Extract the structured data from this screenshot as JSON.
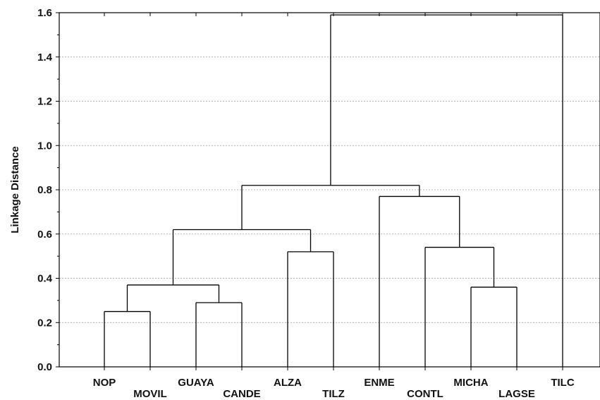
{
  "chart_data": {
    "type": "dendrogram",
    "ylabel": "Linkage Distance",
    "ylim": [
      0.0,
      1.6
    ],
    "yticks": [
      "0.0",
      "0.2",
      "0.4",
      "0.6",
      "0.8",
      "1.0",
      "1.2",
      "1.4",
      "1.6"
    ],
    "grid": true,
    "leaves": [
      "NOP",
      "MOVIL",
      "GUAYA",
      "CANDE",
      "ALZA",
      "TILZ",
      "ENME",
      "CONTL",
      "MICHA",
      "LAGSE",
      "TILC"
    ],
    "merges": [
      {
        "left": "NOP",
        "right": "MOVIL",
        "height": 0.25
      },
      {
        "left": "GUAYA",
        "right": "CANDE",
        "height": 0.29
      },
      {
        "left": "NOP+MOVIL",
        "right": "GUAYA+CANDE",
        "height": 0.37
      },
      {
        "left": "ALZA",
        "right": "TILZ",
        "height": 0.52
      },
      {
        "left": "NOP+MOVIL+GUAYA+CANDE",
        "right": "ALZA+TILZ",
        "height": 0.62
      },
      {
        "left": "MICHA",
        "right": "LAGSE",
        "height": 0.36
      },
      {
        "left": "CONTL",
        "right": "MICHA+LAGSE",
        "height": 0.54
      },
      {
        "left": "ENME",
        "right": "CONTL+MICHA+LAGSE",
        "height": 0.77
      },
      {
        "left": "Cluster-A",
        "right": "Cluster-B",
        "height": 0.82
      },
      {
        "left": "Cluster-A+B",
        "right": "TILC",
        "height": 1.59
      }
    ]
  }
}
